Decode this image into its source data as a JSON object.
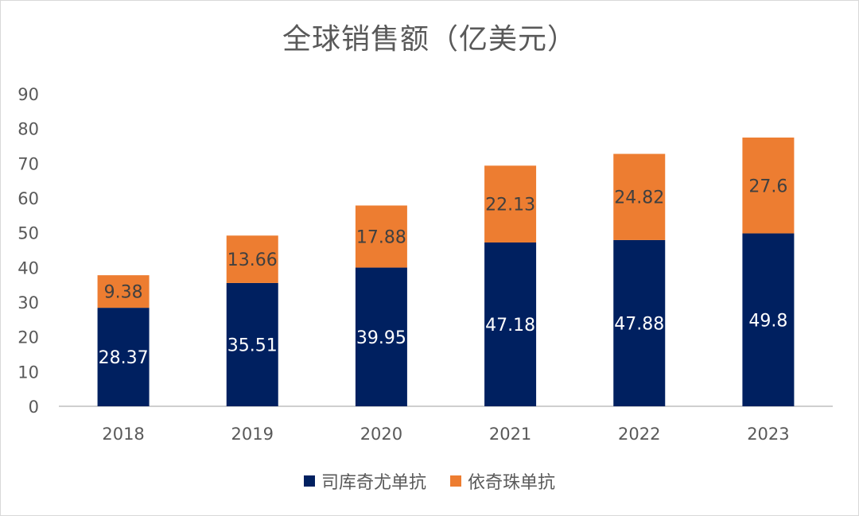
{
  "chart_data": {
    "type": "bar",
    "stacked": true,
    "title": "全球销售额（亿美元）",
    "categories": [
      "2018",
      "2019",
      "2020",
      "2021",
      "2022",
      "2023"
    ],
    "series": [
      {
        "name": "司库奇尤单抗",
        "color": "#002060",
        "label_color": "#ffffff",
        "values": [
          28.37,
          35.51,
          39.95,
          47.18,
          47.88,
          49.8
        ],
        "labels": [
          "28.37",
          "35.51",
          "39.95",
          "47.18",
          "47.88",
          "49.8"
        ]
      },
      {
        "name": "依奇珠单抗",
        "color": "#ED7D31",
        "label_color": "#404040",
        "values": [
          9.38,
          13.66,
          17.88,
          22.13,
          24.82,
          27.6
        ],
        "labels": [
          "9.38",
          "13.66",
          "17.88",
          "22.13",
          "24.82",
          "27.6"
        ]
      }
    ],
    "ylim": [
      0,
      90
    ],
    "yticks": [
      "0",
      "10",
      "20",
      "30",
      "40",
      "50",
      "60",
      "70",
      "80",
      "90"
    ],
    "grid": false,
    "legend_position": "bottom"
  }
}
